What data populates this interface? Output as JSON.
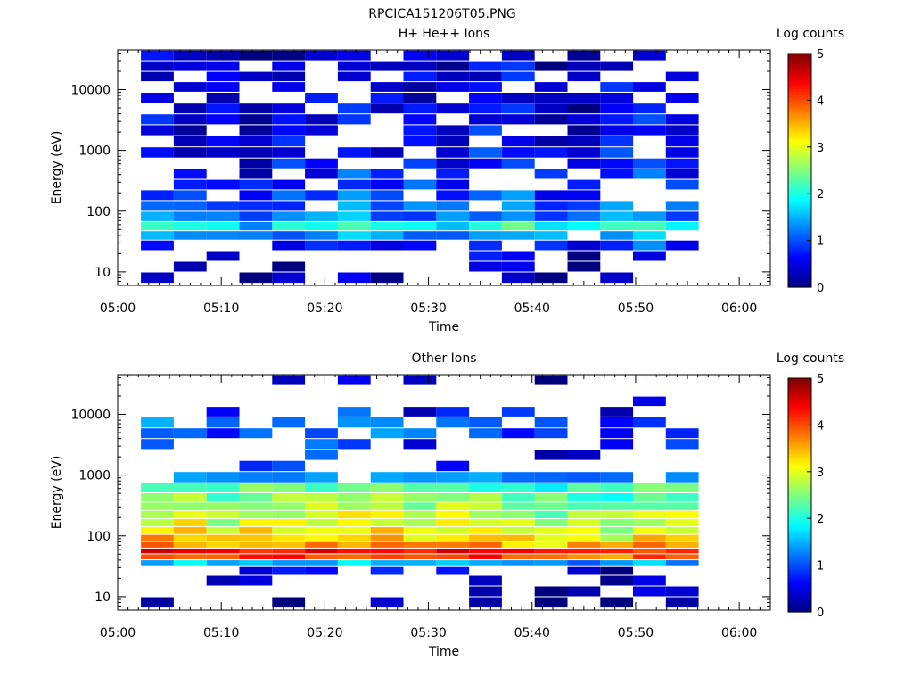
{
  "figure": {
    "filename": "RPCICA151206T05.PNG"
  },
  "colormap": [
    "#00007f",
    "#0000ff",
    "#007fff",
    "#00ffff",
    "#7fff7f",
    "#ffff00",
    "#ff7f00",
    "#ff0000",
    "#7f0000"
  ],
  "chart_data": [
    {
      "type": "heatmap",
      "title": "H+ He++ Ions",
      "xlabel": "Time",
      "ylabel": "Energy (eV)",
      "yscale": "log",
      "xlim": [
        "05:00",
        "06:03"
      ],
      "ylim": [
        6,
        45000
      ],
      "x_ticks": [
        "05:00",
        "05:10",
        "05:20",
        "05:30",
        "05:40",
        "05:50",
        "06:00"
      ],
      "y_ticks": [
        "10",
        "100",
        "1000",
        "10000"
      ],
      "colorbar": {
        "label": "Log counts",
        "ticks": [
          "0",
          "1",
          "2",
          "3",
          "4",
          "5"
        ],
        "range": [
          0,
          5
        ]
      },
      "time_bins_start": [
        "05:02:15",
        "05:05:25",
        "05:08:35",
        "05:11:45",
        "05:14:55",
        "05:18:05",
        "05:21:15",
        "05:24:25",
        "05:27:35",
        "05:30:45",
        "05:33:55",
        "05:37:05",
        "05:40:15",
        "05:43:25",
        "05:46:35",
        "05:49:45",
        "05:52:55"
      ],
      "time_bin_width_min": 3.17,
      "profile_energy_eV": [
        8,
        12,
        18,
        27,
        40,
        55,
        80,
        120,
        180,
        270,
        400,
        600,
        900,
        1400,
        2100,
        3200,
        4800,
        7200,
        11000,
        16000,
        24000,
        36000
      ],
      "profile_log_counts": [
        0.15,
        0.3,
        0.4,
        0.8,
        1.3,
        1.9,
        1.2,
        1.0,
        0.9,
        0.85,
        0.75,
        0.7,
        0.6,
        0.55,
        0.5,
        0.5,
        0.45,
        0.45,
        0.4,
        0.4,
        0.35,
        0.3
      ],
      "profile_coverage": [
        0.4,
        0.35,
        0.45,
        0.75,
        0.95,
        0.95,
        0.9,
        0.85,
        0.8,
        0.75,
        0.75,
        0.75,
        0.75,
        0.7,
        0.7,
        0.7,
        0.7,
        0.7,
        0.7,
        0.7,
        0.7,
        0.65
      ]
    },
    {
      "type": "heatmap",
      "title": "Other Ions",
      "xlabel": "Time",
      "ylabel": "Energy (eV)",
      "yscale": "log",
      "xlim": [
        "05:00",
        "06:03"
      ],
      "ylim": [
        6,
        45000
      ],
      "x_ticks": [
        "05:00",
        "05:10",
        "05:20",
        "05:30",
        "05:40",
        "05:50",
        "06:00"
      ],
      "y_ticks": [
        "10",
        "100",
        "1000",
        "10000"
      ],
      "colorbar": {
        "label": "Log counts",
        "ticks": [
          "0",
          "1",
          "2",
          "3",
          "4",
          "5"
        ],
        "range": [
          0,
          5
        ]
      },
      "time_bins_start": [
        "05:02:15",
        "05:05:25",
        "05:08:35",
        "05:11:45",
        "05:14:55",
        "05:18:05",
        "05:21:15",
        "05:24:25",
        "05:27:35",
        "05:30:45",
        "05:33:55",
        "05:37:05",
        "05:40:15",
        "05:43:25",
        "05:46:35",
        "05:49:45",
        "05:52:55"
      ],
      "time_bin_width_min": 3.17,
      "profile_energy_eV": [
        8,
        12,
        18,
        27,
        35,
        45,
        55,
        70,
        90,
        120,
        160,
        220,
        300,
        420,
        600,
        900,
        1400,
        2100,
        3200,
        4800,
        7200,
        11000,
        16000,
        24000,
        36000
      ],
      "profile_log_counts": [
        0.1,
        0.3,
        0.3,
        0.6,
        1.5,
        4.0,
        4.3,
        3.6,
        3.3,
        3.1,
        2.9,
        2.8,
        2.6,
        2.5,
        2.2,
        1.4,
        0.8,
        0.7,
        0.8,
        1.1,
        1.0,
        0.7,
        0.5,
        0.4,
        0.2
      ],
      "profile_coverage": [
        0.35,
        0.35,
        0.3,
        0.4,
        1.0,
        1.0,
        1.0,
        1.0,
        1.0,
        1.0,
        1.0,
        1.0,
        1.0,
        1.0,
        1.0,
        0.7,
        0.35,
        0.25,
        0.45,
        0.6,
        0.5,
        0.35,
        0.25,
        0.15,
        0.08
      ]
    }
  ]
}
